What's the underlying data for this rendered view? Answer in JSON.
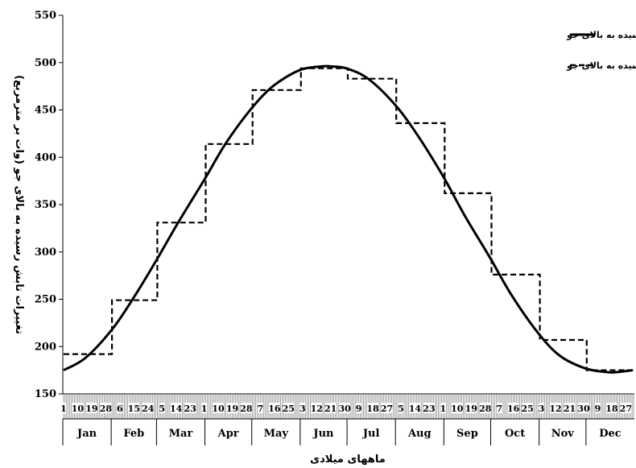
{
  "chart_data": {
    "type": "line",
    "xlabel": "ماههای میلادی",
    "ylabel": "تغییرات تابش رسیده به بالای جو (وات بر مترمربع)",
    "ylim": [
      150,
      550
    ],
    "yticks": [
      "150",
      "200",
      "250",
      "300",
      "350",
      "400",
      "450",
      "500",
      "550"
    ],
    "grid": false,
    "legend_position": "top-right",
    "months": [
      "Jan",
      "Feb",
      "Mar",
      "Apr",
      "May",
      "Jun",
      "Jul",
      "Aug",
      "Sep",
      "Oct",
      "Nov",
      "Dec"
    ],
    "day_tick_labels": [
      "1",
      "10",
      "19",
      "28",
      "6",
      "15",
      "24",
      "5",
      "14",
      "23",
      "1",
      "10",
      "19",
      "28",
      "7",
      "16",
      "25",
      "3",
      "12",
      "21",
      "30",
      "9",
      "18",
      "27",
      "5",
      "14",
      "23",
      "1",
      "10",
      "19",
      "28",
      "7",
      "16",
      "25",
      "3",
      "12",
      "21",
      "30",
      "9",
      "18",
      "27"
    ],
    "series": [
      {
        "name": "تغییرات روزانه تابش رسیده به بالای جو",
        "style": "solid",
        "x": [
          1,
          15,
          32,
          46,
          60,
          74,
          91,
          105,
          121,
          135,
          152,
          166,
          172,
          182,
          196,
          213,
          227,
          244,
          258,
          274,
          288,
          305,
          319,
          335,
          349,
          355,
          365
        ],
        "y": [
          175,
          188,
          218,
          252,
          290,
          330,
          376,
          415,
          451,
          475,
          492,
          496,
          496,
          494,
          483,
          456,
          425,
          380,
          338,
          294,
          254,
          214,
          190,
          177,
          173,
          173,
          175
        ]
      },
      {
        "name": "تغییرات ماهانه تابش رسیده به بالای جو",
        "style": "dashed",
        "values": [
          192,
          249,
          331,
          414,
          471,
          494,
          483,
          436,
          362,
          276,
          207,
          175
        ]
      }
    ]
  }
}
